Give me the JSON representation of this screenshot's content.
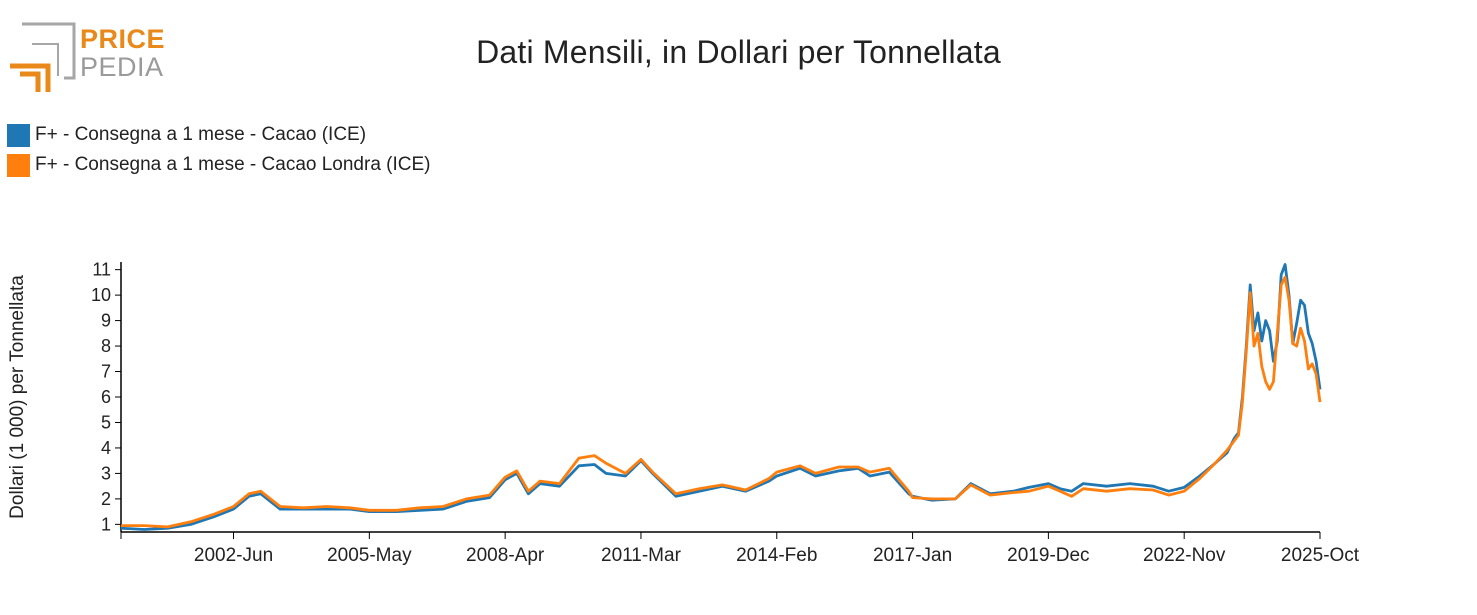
{
  "logo": {
    "top_word": "PRICE",
    "bottom_word": "PEDIA"
  },
  "title": "Dati Mensili, in Dollari per Tonnellata",
  "colors": {
    "series1": "#1f77b4",
    "series2": "#ff7f0e",
    "logo_orange": "#e8891a",
    "logo_grey": "#9a9a9a"
  },
  "chart_data": {
    "type": "line",
    "title": "Dati Mensili, in Dollari per Tonnellata",
    "ylabel": "Dollari (1 000) per Tonnellata",
    "xlabel": "",
    "ylim": [
      0.7,
      11.3
    ],
    "yticks": [
      1,
      2,
      3,
      4,
      5,
      6,
      7,
      8,
      9,
      10,
      11
    ],
    "x_start": "2000-Jan",
    "x_end": "2025-Oct",
    "xticks": [
      "2002-Jun",
      "2005-May",
      "2008-Apr",
      "2011-Mar",
      "2014-Feb",
      "2017-Jan",
      "2019-Dec",
      "2022-Nov",
      "2025-Oct"
    ],
    "grid": false,
    "legend_position": "top-left",
    "series": [
      {
        "name": "F+ - Consegna a 1 mese - Cacao (ICE)",
        "points": [
          [
            "2000-Jan",
            0.85
          ],
          [
            "2000-Jul",
            0.8
          ],
          [
            "2001-Jan",
            0.85
          ],
          [
            "2001-Jul",
            1.0
          ],
          [
            "2002-Jan",
            1.3
          ],
          [
            "2002-Jun",
            1.6
          ],
          [
            "2002-Oct",
            2.1
          ],
          [
            "2003-Jan",
            2.2
          ],
          [
            "2003-Jun",
            1.6
          ],
          [
            "2003-Dec",
            1.6
          ],
          [
            "2004-Jun",
            1.6
          ],
          [
            "2004-Dec",
            1.6
          ],
          [
            "2005-May",
            1.5
          ],
          [
            "2005-Dec",
            1.5
          ],
          [
            "2006-Jun",
            1.55
          ],
          [
            "2006-Dec",
            1.6
          ],
          [
            "2007-Jun",
            1.9
          ],
          [
            "2007-Dec",
            2.05
          ],
          [
            "2008-Apr",
            2.75
          ],
          [
            "2008-Jul",
            3.0
          ],
          [
            "2008-Oct",
            2.2
          ],
          [
            "2009-Jan",
            2.6
          ],
          [
            "2009-Jun",
            2.5
          ],
          [
            "2009-Nov",
            3.3
          ],
          [
            "2010-Mar",
            3.35
          ],
          [
            "2010-Jun",
            3.0
          ],
          [
            "2010-Nov",
            2.9
          ],
          [
            "2011-Mar",
            3.5
          ],
          [
            "2011-Jun",
            3.0
          ],
          [
            "2011-Dec",
            2.1
          ],
          [
            "2012-Jun",
            2.3
          ],
          [
            "2012-Dec",
            2.5
          ],
          [
            "2013-Jun",
            2.3
          ],
          [
            "2013-Dec",
            2.7
          ],
          [
            "2014-Feb",
            2.9
          ],
          [
            "2014-Aug",
            3.2
          ],
          [
            "2014-Dec",
            2.9
          ],
          [
            "2015-Jun",
            3.1
          ],
          [
            "2015-Nov",
            3.2
          ],
          [
            "2016-Feb",
            2.9
          ],
          [
            "2016-Jul",
            3.05
          ],
          [
            "2016-Dec",
            2.2
          ],
          [
            "2017-Jan",
            2.1
          ],
          [
            "2017-Jun",
            1.95
          ],
          [
            "2017-Dec",
            2.0
          ],
          [
            "2018-Apr",
            2.6
          ],
          [
            "2018-Sep",
            2.2
          ],
          [
            "2019-Mar",
            2.3
          ],
          [
            "2019-Jul",
            2.45
          ],
          [
            "2019-Dec",
            2.6
          ],
          [
            "2020-Mar",
            2.4
          ],
          [
            "2020-Jun",
            2.3
          ],
          [
            "2020-Sep",
            2.6
          ],
          [
            "2021-Mar",
            2.5
          ],
          [
            "2021-Sep",
            2.6
          ],
          [
            "2022-Mar",
            2.5
          ],
          [
            "2022-Jul",
            2.3
          ],
          [
            "2022-Nov",
            2.45
          ],
          [
            "2023-Mar",
            2.9
          ],
          [
            "2023-Jul",
            3.4
          ],
          [
            "2023-Oct",
            3.8
          ],
          [
            "2023-Dec",
            4.4
          ],
          [
            "2024-Jan",
            4.6
          ],
          [
            "2024-Feb",
            6.0
          ],
          [
            "2024-Mar",
            8.0
          ],
          [
            "2024-Apr",
            10.4
          ],
          [
            "2024-May",
            8.6
          ],
          [
            "2024-Jun",
            9.3
          ],
          [
            "2024-Jul",
            8.2
          ],
          [
            "2024-Aug",
            9.0
          ],
          [
            "2024-Sep",
            8.6
          ],
          [
            "2024-Oct",
            7.4
          ],
          [
            "2024-Nov",
            8.2
          ],
          [
            "2024-Dec",
            10.8
          ],
          [
            "2025-Jan",
            11.2
          ],
          [
            "2025-Feb",
            10.0
          ],
          [
            "2025-Mar",
            8.1
          ],
          [
            "2025-Apr",
            8.9
          ],
          [
            "2025-May",
            9.8
          ],
          [
            "2025-Jun",
            9.6
          ],
          [
            "2025-Jul",
            8.5
          ],
          [
            "2025-Aug",
            8.1
          ],
          [
            "2025-Sep",
            7.4
          ],
          [
            "2025-Oct",
            6.3
          ]
        ]
      },
      {
        "name": "F+ - Consegna a 1 mese - Cacao Londra (ICE)",
        "points": [
          [
            "2000-Jan",
            0.95
          ],
          [
            "2000-Jul",
            0.95
          ],
          [
            "2001-Jan",
            0.9
          ],
          [
            "2001-Jul",
            1.1
          ],
          [
            "2002-Jan",
            1.4
          ],
          [
            "2002-Jun",
            1.7
          ],
          [
            "2002-Oct",
            2.2
          ],
          [
            "2003-Jan",
            2.3
          ],
          [
            "2003-Jun",
            1.7
          ],
          [
            "2003-Dec",
            1.65
          ],
          [
            "2004-Jun",
            1.7
          ],
          [
            "2004-Dec",
            1.65
          ],
          [
            "2005-May",
            1.55
          ],
          [
            "2005-Dec",
            1.55
          ],
          [
            "2006-Jun",
            1.65
          ],
          [
            "2006-Dec",
            1.7
          ],
          [
            "2007-Jun",
            2.0
          ],
          [
            "2007-Dec",
            2.15
          ],
          [
            "2008-Apr",
            2.85
          ],
          [
            "2008-Jul",
            3.1
          ],
          [
            "2008-Oct",
            2.3
          ],
          [
            "2009-Jan",
            2.7
          ],
          [
            "2009-Jun",
            2.6
          ],
          [
            "2009-Nov",
            3.6
          ],
          [
            "2010-Mar",
            3.7
          ],
          [
            "2010-Jun",
            3.4
          ],
          [
            "2010-Nov",
            3.0
          ],
          [
            "2011-Mar",
            3.55
          ],
          [
            "2011-Jun",
            3.05
          ],
          [
            "2011-Dec",
            2.2
          ],
          [
            "2012-Jun",
            2.4
          ],
          [
            "2012-Dec",
            2.55
          ],
          [
            "2013-Jun",
            2.35
          ],
          [
            "2013-Dec",
            2.8
          ],
          [
            "2014-Feb",
            3.05
          ],
          [
            "2014-Aug",
            3.3
          ],
          [
            "2014-Dec",
            3.0
          ],
          [
            "2015-Jun",
            3.25
          ],
          [
            "2015-Nov",
            3.25
          ],
          [
            "2016-Feb",
            3.05
          ],
          [
            "2016-Jul",
            3.2
          ],
          [
            "2016-Dec",
            2.3
          ],
          [
            "2017-Jan",
            2.05
          ],
          [
            "2017-Jun",
            2.0
          ],
          [
            "2017-Dec",
            2.0
          ],
          [
            "2018-Apr",
            2.55
          ],
          [
            "2018-Sep",
            2.15
          ],
          [
            "2019-Mar",
            2.25
          ],
          [
            "2019-Jul",
            2.3
          ],
          [
            "2019-Dec",
            2.5
          ],
          [
            "2020-Mar",
            2.3
          ],
          [
            "2020-Jun",
            2.1
          ],
          [
            "2020-Sep",
            2.4
          ],
          [
            "2021-Mar",
            2.3
          ],
          [
            "2021-Sep",
            2.4
          ],
          [
            "2022-Mar",
            2.35
          ],
          [
            "2022-Jul",
            2.15
          ],
          [
            "2022-Nov",
            2.3
          ],
          [
            "2023-Mar",
            2.8
          ],
          [
            "2023-Jul",
            3.4
          ],
          [
            "2023-Oct",
            3.9
          ],
          [
            "2023-Dec",
            4.3
          ],
          [
            "2024-Jan",
            4.5
          ],
          [
            "2024-Feb",
            5.8
          ],
          [
            "2024-Mar",
            7.8
          ],
          [
            "2024-Apr",
            10.1
          ],
          [
            "2024-May",
            8.0
          ],
          [
            "2024-Jun",
            8.5
          ],
          [
            "2024-Jul",
            7.2
          ],
          [
            "2024-Aug",
            6.6
          ],
          [
            "2024-Sep",
            6.3
          ],
          [
            "2024-Oct",
            6.6
          ],
          [
            "2024-Nov",
            8.5
          ],
          [
            "2024-Dec",
            10.4
          ],
          [
            "2025-Jan",
            10.7
          ],
          [
            "2025-Feb",
            9.8
          ],
          [
            "2025-Mar",
            8.1
          ],
          [
            "2025-Apr",
            8.0
          ],
          [
            "2025-May",
            8.7
          ],
          [
            "2025-Jun",
            8.2
          ],
          [
            "2025-Jul",
            7.1
          ],
          [
            "2025-Aug",
            7.3
          ],
          [
            "2025-Sep",
            6.9
          ],
          [
            "2025-Oct",
            5.8
          ]
        ]
      }
    ]
  }
}
